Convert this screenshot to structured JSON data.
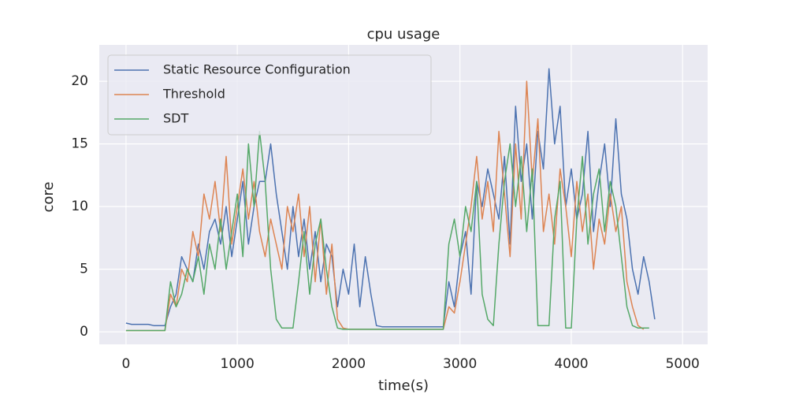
{
  "chart_data": {
    "type": "line",
    "title": "cpu usage",
    "x_label": "time(s)",
    "y_label": "core",
    "x": [
      0,
      50,
      100,
      150,
      200,
      250,
      300,
      350,
      400,
      450,
      500,
      550,
      600,
      650,
      700,
      750,
      800,
      850,
      900,
      950,
      1000,
      1050,
      1100,
      1150,
      1200,
      1250,
      1300,
      1350,
      1400,
      1450,
      1500,
      1550,
      1600,
      1650,
      1700,
      1750,
      1800,
      1850,
      1900,
      1950,
      2000,
      2050,
      2100,
      2150,
      2200,
      2250,
      2300,
      2350,
      2400,
      2450,
      2500,
      2550,
      2600,
      2650,
      2700,
      2750,
      2800,
      2850,
      2900,
      2950,
      3000,
      3050,
      3100,
      3150,
      3200,
      3250,
      3300,
      3350,
      3400,
      3450,
      3500,
      3550,
      3600,
      3650,
      3700,
      3750,
      3800,
      3850,
      3900,
      3950,
      4000,
      4050,
      4100,
      4150,
      4200,
      4250,
      4300,
      4350,
      4400,
      4450,
      4500,
      4550,
      4600,
      4650,
      4700,
      4750
    ],
    "series": [
      {
        "name": "Static Resource Configuration",
        "color": "#4c72b0",
        "values": [
          0.7,
          0.6,
          0.6,
          0.6,
          0.6,
          0.5,
          0.5,
          0.5,
          2,
          3,
          6,
          5,
          4,
          7,
          5,
          8,
          9,
          7,
          10,
          6,
          9,
          12,
          7,
          10,
          12,
          12,
          15,
          11,
          8,
          5,
          10,
          6,
          9,
          5,
          8,
          4,
          7,
          6,
          2,
          5,
          3,
          7,
          2,
          6,
          3,
          0.5,
          0.4,
          0.4,
          0.4,
          0.4,
          0.4,
          0.4,
          0.4,
          0.4,
          0.4,
          0.4,
          0.4,
          0.4,
          4,
          2,
          6,
          8,
          3,
          12,
          10,
          13,
          11,
          9,
          14,
          7,
          18,
          12,
          15,
          9,
          16,
          13,
          21,
          15,
          18,
          10,
          13,
          9,
          11,
          16,
          8,
          12,
          15,
          10,
          17,
          11,
          9,
          5,
          3,
          6,
          4,
          1
        ]
      },
      {
        "name": "Threshold",
        "color": "#dd8452",
        "values": [
          0.1,
          0.1,
          0.1,
          0.1,
          0.1,
          0.1,
          0.1,
          0.1,
          3,
          2,
          5,
          4,
          8,
          6,
          11,
          9,
          12,
          8,
          14,
          7,
          10,
          13,
          9,
          12,
          8,
          6,
          9,
          7,
          5,
          10,
          8,
          11,
          6,
          10,
          4,
          9,
          3,
          7,
          1,
          0.3,
          0.2,
          0.2,
          0.2,
          0.2,
          0.2,
          0.2,
          0.2,
          0.2,
          0.2,
          0.2,
          0.2,
          0.2,
          0.2,
          0.2,
          0.2,
          0.2,
          0.2,
          0.2,
          2,
          1.5,
          4,
          7,
          10,
          14,
          9,
          12,
          8,
          16,
          11,
          6,
          15,
          9,
          20,
          12,
          17,
          8,
          11,
          7,
          13,
          10,
          6,
          12,
          8,
          11,
          5,
          9,
          7,
          11,
          8,
          10,
          4,
          2,
          0.5,
          0.2,
          null,
          null
        ]
      },
      {
        "name": "SDT",
        "color": "#55a868",
        "values": [
          0.1,
          0.1,
          0.1,
          0.1,
          0.1,
          0.1,
          0.1,
          0.1,
          4,
          2,
          3,
          5,
          4,
          6,
          3,
          7,
          5,
          9,
          5,
          8,
          11,
          6,
          15,
          10,
          16,
          12,
          5,
          1,
          0.3,
          0.3,
          0.3,
          4,
          8,
          3,
          7,
          9,
          5,
          2,
          0.3,
          0.2,
          0.2,
          0.2,
          0.2,
          0.2,
          0.2,
          0.2,
          0.2,
          0.2,
          0.2,
          0.2,
          0.2,
          0.2,
          0.2,
          0.2,
          0.2,
          0.2,
          0.2,
          0.2,
          7,
          9,
          6,
          10,
          8,
          12,
          3,
          1,
          0.5,
          7,
          12,
          15,
          10,
          14,
          8,
          13,
          0.5,
          0.5,
          0.5,
          9,
          12,
          0.3,
          0.3,
          9,
          14,
          7,
          11,
          13,
          8,
          12,
          10,
          6,
          2,
          0.5,
          0.3,
          0.3,
          0.3,
          null
        ]
      }
    ],
    "xlim": [
      -240,
      5225
    ],
    "ylim": [
      -1.0,
      22.9
    ],
    "xticks": [
      0,
      1000,
      2000,
      3000,
      4000,
      5000
    ],
    "yticks": [
      0,
      5,
      10,
      15,
      20
    ],
    "grid": true,
    "legend": "upper-left"
  }
}
